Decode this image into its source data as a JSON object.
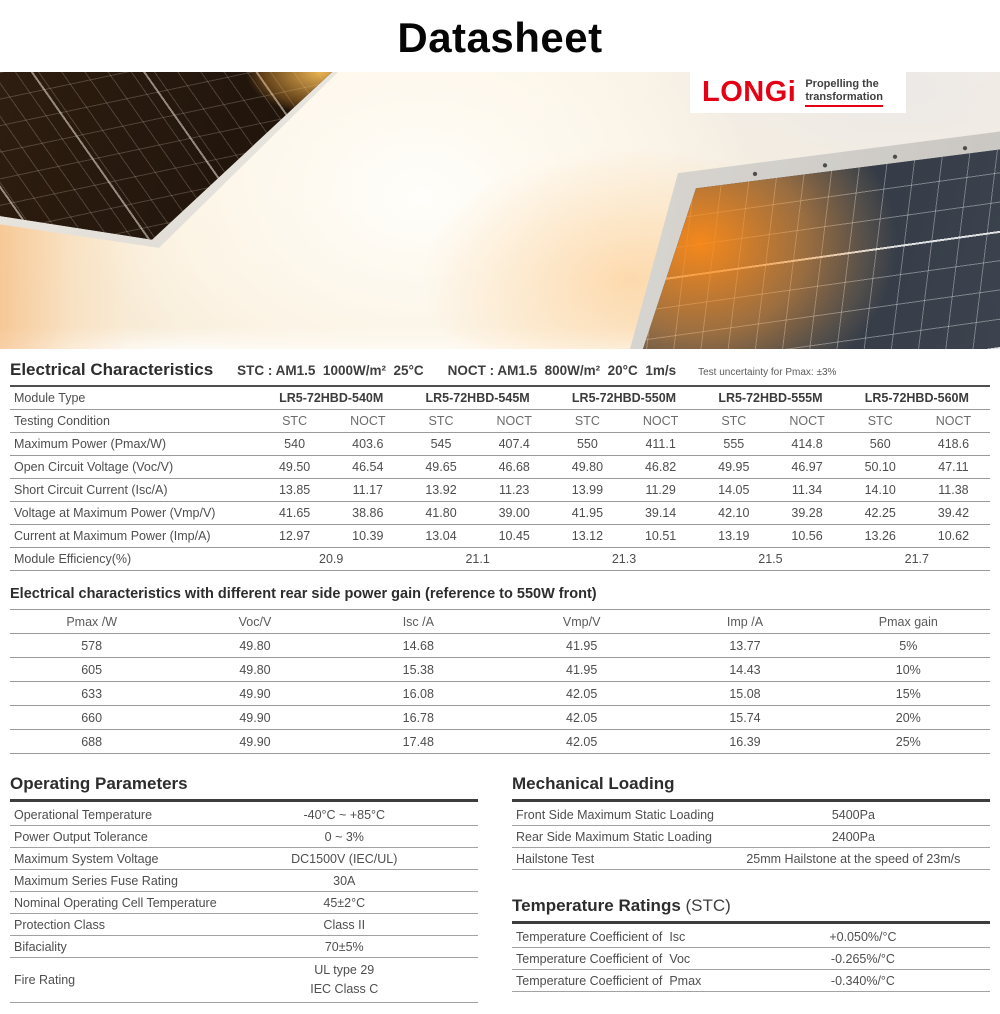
{
  "page": {
    "title": "Datasheet"
  },
  "logo": {
    "brand": "LONGi",
    "brand_color": "#e50113",
    "tagline_line1": "Propelling the",
    "tagline_line2": "transformation"
  },
  "electrical": {
    "title": "Electrical Characteristics",
    "stc_condition": "STC : AM1.5  1000W/m²  25°C",
    "noct_condition": "NOCT : AM1.5  800W/m²  20°C  1m/s",
    "uncertainty_note": "Test uncertainty for Pmax: ±3%",
    "module_type_label": "Module Type",
    "modules": [
      "LR5-72HBD-540M",
      "LR5-72HBD-545M",
      "LR5-72HBD-550M",
      "LR5-72HBD-555M",
      "LR5-72HBD-560M"
    ],
    "testing_condition_label": "Testing Condition",
    "stc": "STC",
    "noct": "NOCT",
    "rows": [
      {
        "label": "Maximum Power (Pmax/W)",
        "values": [
          "540",
          "403.6",
          "545",
          "407.4",
          "550",
          "411.1",
          "555",
          "414.8",
          "560",
          "418.6"
        ]
      },
      {
        "label": "Open Circuit Voltage (Voc/V)",
        "values": [
          "49.50",
          "46.54",
          "49.65",
          "46.68",
          "49.80",
          "46.82",
          "49.95",
          "46.97",
          "50.10",
          "47.11"
        ]
      },
      {
        "label": "Short Circuit Current (Isc/A)",
        "values": [
          "13.85",
          "11.17",
          "13.92",
          "11.23",
          "13.99",
          "11.29",
          "14.05",
          "11.34",
          "14.10",
          "11.38"
        ]
      },
      {
        "label": "Voltage at Maximum Power (Vmp/V)",
        "values": [
          "41.65",
          "38.86",
          "41.80",
          "39.00",
          "41.95",
          "39.14",
          "42.10",
          "39.28",
          "42.25",
          "39.42"
        ]
      },
      {
        "label": "Current at Maximum Power (Imp/A)",
        "values": [
          "12.97",
          "10.39",
          "13.04",
          "10.45",
          "13.12",
          "10.51",
          "13.19",
          "10.56",
          "13.26",
          "10.62"
        ]
      }
    ],
    "efficiency": {
      "label": "Module Efficiency(%)",
      "values": [
        "20.9",
        "21.1",
        "21.3",
        "21.5",
        "21.7"
      ]
    }
  },
  "rear_gain": {
    "title": "Electrical characteristics with different rear side power gain (reference to 550W front)",
    "headers": [
      "Pmax /W",
      "Voc/V",
      "Isc /A",
      "Vmp/V",
      "Imp /A",
      "Pmax gain"
    ],
    "rows": [
      [
        "578",
        "49.80",
        "14.68",
        "41.95",
        "13.77",
        "5%"
      ],
      [
        "605",
        "49.80",
        "15.38",
        "41.95",
        "14.43",
        "10%"
      ],
      [
        "633",
        "49.90",
        "16.08",
        "42.05",
        "15.08",
        "15%"
      ],
      [
        "660",
        "49.90",
        "16.78",
        "42.05",
        "15.74",
        "20%"
      ],
      [
        "688",
        "49.90",
        "17.48",
        "42.05",
        "16.39",
        "25%"
      ]
    ]
  },
  "operating": {
    "title": "Operating Parameters",
    "rows": [
      {
        "label": "Operational Temperature",
        "value": "-40°C ~ +85°C"
      },
      {
        "label": "Power Output Tolerance",
        "value": "0 ~ 3%"
      },
      {
        "label": "Maximum System Voltage",
        "value": "DC1500V (IEC/UL)"
      },
      {
        "label": "Maximum Series Fuse Rating",
        "value": "30A"
      },
      {
        "label": "Nominal Operating Cell Temperature",
        "value": "45±2°C"
      },
      {
        "label": "Protection Class",
        "value": "Class II"
      },
      {
        "label": "Bifaciality",
        "value": "70±5%"
      }
    ],
    "fire_rating": {
      "label": "Fire Rating",
      "value_line1": "UL type 29",
      "value_line2": "IEC Class C"
    }
  },
  "mechanical": {
    "title": "Mechanical Loading",
    "rows": [
      {
        "label": "Front Side Maximum Static Loading",
        "value": "5400Pa"
      },
      {
        "label": "Rear Side Maximum Static Loading",
        "value": "2400Pa"
      },
      {
        "label": "Hailstone Test",
        "value": "25mm Hailstone at the speed of 23m/s"
      }
    ]
  },
  "temperature": {
    "title": "Temperature Ratings",
    "title_suffix": "(STC)",
    "rows": [
      {
        "label": "Temperature Coefficient of  Isc",
        "value": "+0.050%/°C"
      },
      {
        "label": "Temperature Coefficient of  Voc",
        "value": "-0.265%/°C"
      },
      {
        "label": "Temperature Coefficient of  Pmax",
        "value": "-0.340%/°C"
      }
    ]
  }
}
